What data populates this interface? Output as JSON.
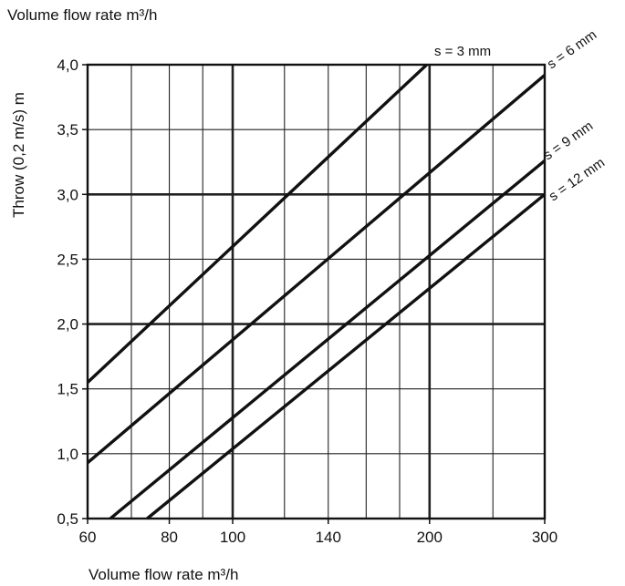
{
  "chart_data": {
    "type": "line",
    "title": "",
    "top_label": "Volume flow rate m³/h",
    "xlabel": "Volume flow rate m³/h",
    "ylabel": "Throw (0,2 m/s) m",
    "x_scale": "log",
    "xlim": [
      60,
      300
    ],
    "ylim": [
      0.5,
      4.0
    ],
    "x_ticks": [
      {
        "value": 60,
        "label": "60"
      },
      {
        "value": 80,
        "label": "80"
      },
      {
        "value": 100,
        "label": "100"
      },
      {
        "value": 140,
        "label": "140"
      },
      {
        "value": 200,
        "label": "200"
      },
      {
        "value": 300,
        "label": "300"
      }
    ],
    "y_ticks": [
      {
        "value": 0.5,
        "label": "0,5"
      },
      {
        "value": 1.0,
        "label": "1,0"
      },
      {
        "value": 1.5,
        "label": "1,5"
      },
      {
        "value": 2.0,
        "label": "2,0"
      },
      {
        "value": 2.5,
        "label": "2,5"
      },
      {
        "value": 3.0,
        "label": "3,0"
      },
      {
        "value": 3.5,
        "label": "3,5"
      },
      {
        "value": 4.0,
        "label": "4,0"
      }
    ],
    "x_grid": [
      60,
      70,
      80,
      90,
      100,
      120,
      140,
      160,
      180,
      200,
      250,
      300
    ],
    "x_grid_major": [
      100,
      200
    ],
    "y_grid": [
      0.5,
      1.0,
      1.5,
      2.0,
      2.5,
      3.0,
      3.5,
      4.0
    ],
    "y_grid_major": [
      2.0,
      3.0
    ],
    "grid": true,
    "series": [
      {
        "name": "s = 3 mm",
        "x": [
          60,
          198
        ],
        "y": [
          1.55,
          4.0
        ]
      },
      {
        "name": "s = 6 mm",
        "x": [
          60,
          300
        ],
        "y": [
          0.93,
          3.92
        ]
      },
      {
        "name": "s = 9 mm",
        "x": [
          65,
          300
        ],
        "y": [
          0.5,
          3.26
        ]
      },
      {
        "name": "s = 12 mm",
        "x": [
          74,
          300
        ],
        "y": [
          0.5,
          3.0
        ]
      }
    ],
    "line_color": "#111111",
    "grid_color": "#222222"
  }
}
